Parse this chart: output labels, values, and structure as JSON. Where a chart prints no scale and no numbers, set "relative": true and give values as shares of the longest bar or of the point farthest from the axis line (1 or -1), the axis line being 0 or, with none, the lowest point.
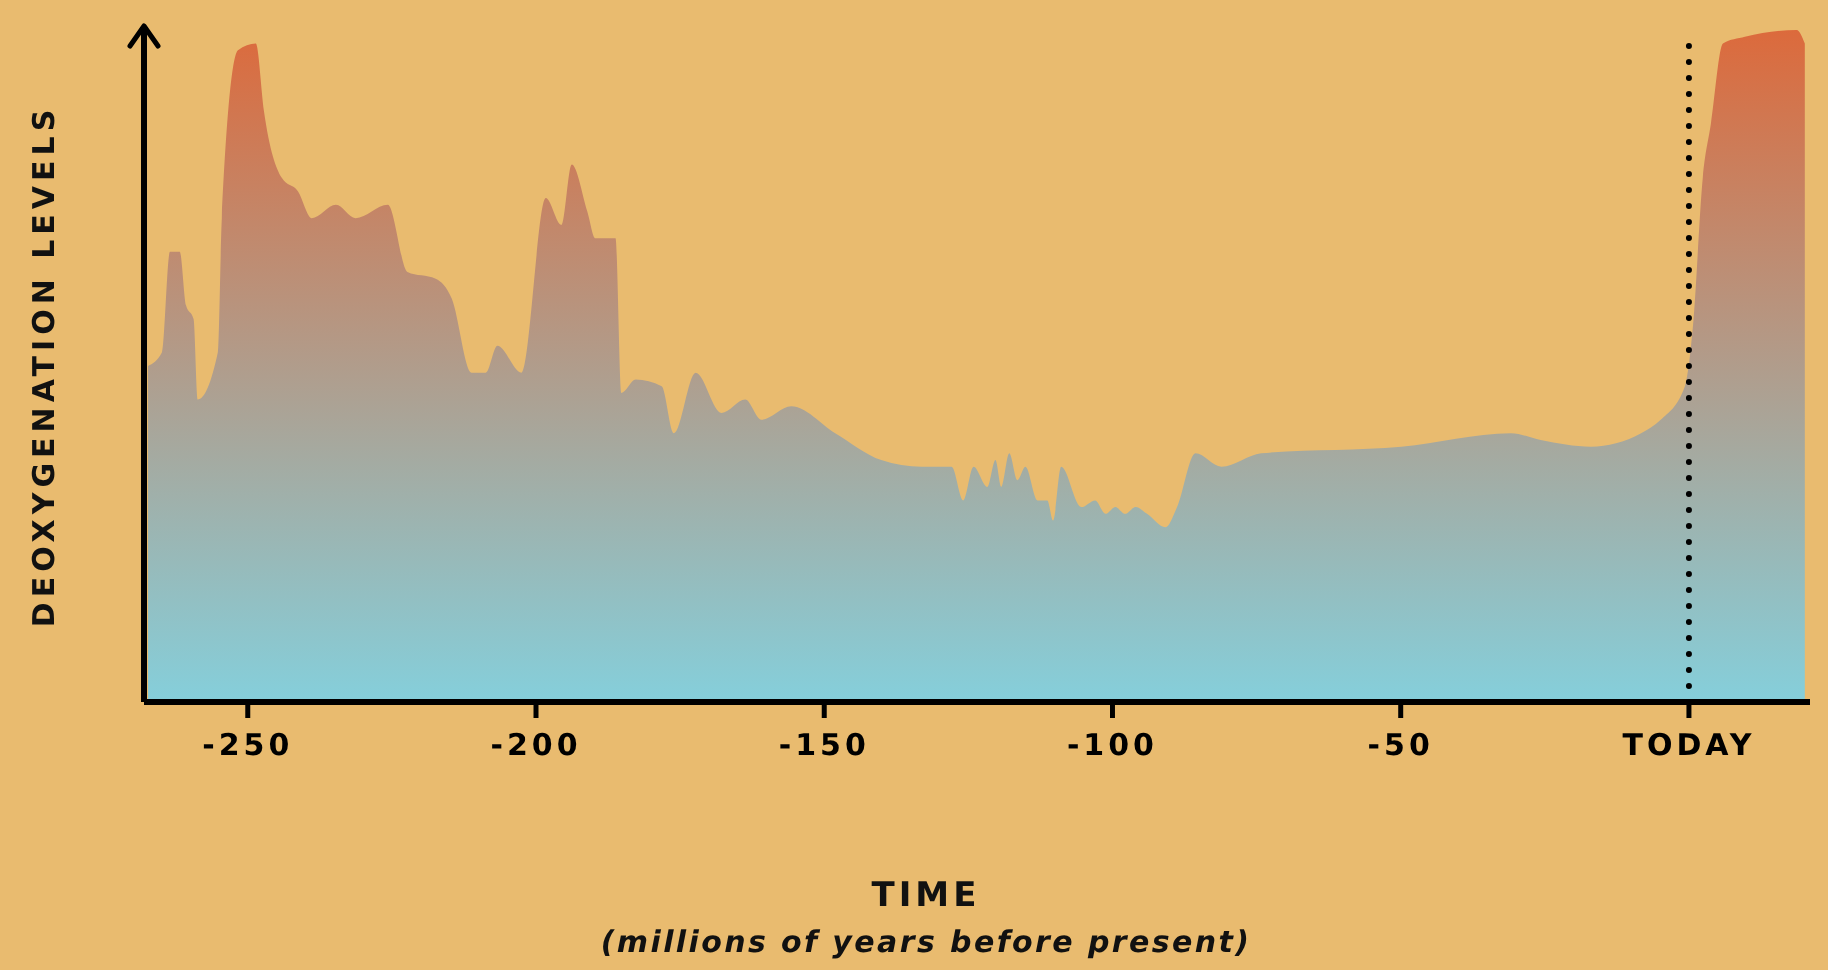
{
  "chart_data": {
    "type": "area",
    "relative": true,
    "ylabel": "DEOXYGENATION LEVELS",
    "xlabel": "TIME\n(millions of years before present)",
    "color": "#dc6a3c",
    "xlim": [
      -268,
      21
    ],
    "xticks": [
      -250,
      -200,
      -150,
      -100,
      -50,
      {
        "value": 0,
        "label": "TODAY"
      }
    ],
    "ref_lines": [
      {
        "axis": "x",
        "value": 0,
        "line_style": "dotted",
        "color": "#000000"
      }
    ],
    "x": [
      -267.3,
      -264.9,
      -263.5,
      -261.8,
      -260.7,
      -259.4,
      -258.7,
      -255.2,
      -254.5,
      -251.7,
      -248.6,
      -247.2,
      -244.1,
      -241.3,
      -238.9,
      -234.7,
      -231.3,
      -225.7,
      -222.3,
      -217.4,
      -214.6,
      -211.2,
      -208.7,
      -206.7,
      -202.5,
      -198.3,
      -195.6,
      -193.8,
      -191.1,
      -189.7,
      -186.2,
      -185.2,
      -182.7,
      -178.2,
      -176.1,
      -172.3,
      -167.8,
      -163.7,
      -160.9,
      -155.7,
      -148.1,
      -140.1,
      -133.1,
      -127.9,
      -125.9,
      -124.1,
      -121.7,
      -120.3,
      -119.3,
      -117.9,
      -116.5,
      -115.1,
      -113.0,
      -111.3,
      -110.3,
      -108.9,
      -105.4,
      -103.0,
      -101.2,
      -99.5,
      -97.8,
      -96.0,
      -94.0,
      -90.8,
      -88.8,
      -85.6,
      -81.1,
      -74.2,
      -49.9,
      -30.9,
      -25.7,
      -17.0,
      -8.3,
      -4.9,
      -0.7,
      0.7,
      2.4,
      3.8,
      5.9,
      9.7,
      18.7,
      20.1
    ],
    "values": [
      0.5,
      0.52,
      0.67,
      0.67,
      0.59,
      0.57,
      0.45,
      0.52,
      0.72,
      0.97,
      0.98,
      0.88,
      0.78,
      0.76,
      0.72,
      0.74,
      0.72,
      0.74,
      0.64,
      0.63,
      0.6,
      0.49,
      0.49,
      0.53,
      0.49,
      0.75,
      0.71,
      0.8,
      0.73,
      0.69,
      0.69,
      0.46,
      0.48,
      0.47,
      0.4,
      0.49,
      0.43,
      0.45,
      0.42,
      0.44,
      0.4,
      0.36,
      0.35,
      0.35,
      0.3,
      0.35,
      0.32,
      0.36,
      0.32,
      0.37,
      0.33,
      0.35,
      0.3,
      0.3,
      0.27,
      0.35,
      0.29,
      0.3,
      0.28,
      0.29,
      0.28,
      0.29,
      0.28,
      0.26,
      0.29,
      0.37,
      0.35,
      0.37,
      0.38,
      0.4,
      0.39,
      0.38,
      0.4,
      0.42,
      0.47,
      0.56,
      0.78,
      0.86,
      0.98,
      0.99,
      1,
      0.98
    ]
  }
}
